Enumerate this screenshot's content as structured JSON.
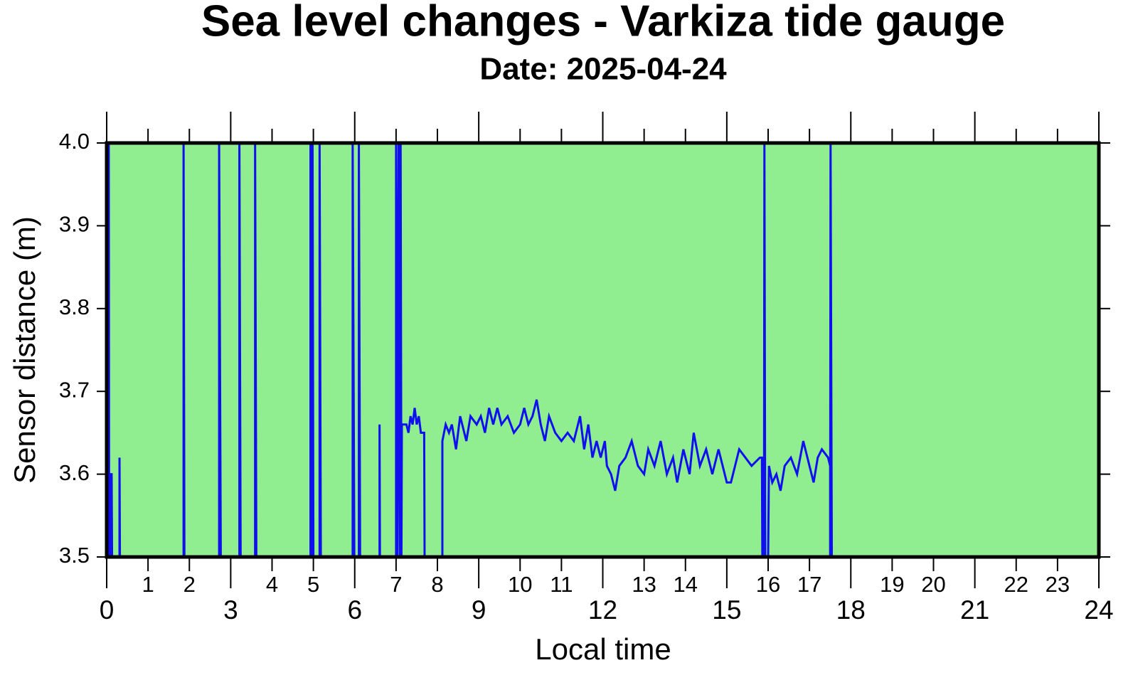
{
  "chart_data": {
    "type": "line",
    "title": "Sea level changes - Varkiza tide gauge",
    "subtitle": "Date: 2025-04-24",
    "x_label": "Local time",
    "y_label": "Sensor distance (m)",
    "xlim": [
      0,
      24
    ],
    "ylim": [
      3.5,
      4.0
    ],
    "xticks": [
      0,
      3,
      6,
      9,
      12,
      15,
      18,
      21,
      24
    ],
    "minor_xticks": [
      1,
      2,
      4,
      5,
      7,
      8,
      10,
      11,
      13,
      14,
      16,
      17,
      19,
      20,
      22,
      23
    ],
    "yticks": [
      3.5,
      3.6,
      3.7,
      3.8,
      3.9,
      {
        "value": 4.0,
        "label": "4.0"
      }
    ],
    "background": "#90ee90",
    "series": [
      {
        "name": "Sensor distance",
        "color": "#1010ee",
        "x": [
          0,
          0.02,
          0.05,
          0.06,
          0.09,
          0.09,
          0.12,
          0.13,
          0.31,
          0.31,
          0.32,
          1.86,
          1.86,
          1.88,
          2.72,
          2.72,
          2.76,
          3.21,
          3.21,
          3.24,
          3.59,
          3.59,
          3.62,
          4.93,
          4.93,
          4.96,
          4.98,
          4.98,
          5.0,
          5.15,
          5.15,
          5.18,
          5.95,
          5.95,
          5.99,
          6.1,
          6.1,
          6.13,
          6.6,
          6.6,
          6.61,
          7.0,
          7.0,
          7.03,
          7.06,
          7.09,
          7.11,
          7.13,
          7.14,
          7.25,
          7.3,
          7.35,
          7.4,
          7.45,
          7.5,
          7.55,
          7.6,
          7.68,
          7.69,
          8.12,
          8.12,
          8.2,
          8.28,
          8.35,
          8.45,
          8.55,
          8.7,
          8.8,
          8.95,
          9.05,
          9.15,
          9.25,
          9.35,
          9.45,
          9.55,
          9.7,
          9.85,
          10.0,
          10.1,
          10.2,
          10.3,
          10.4,
          10.5,
          10.6,
          10.7,
          10.85,
          11.0,
          11.15,
          11.3,
          11.45,
          11.55,
          11.65,
          11.75,
          11.85,
          11.95,
          12.05,
          12.1,
          12.2,
          12.3,
          12.4,
          12.55,
          12.7,
          12.85,
          13.0,
          13.1,
          13.25,
          13.4,
          13.55,
          13.7,
          13.8,
          13.95,
          14.1,
          14.2,
          14.35,
          14.5,
          14.65,
          14.8,
          14.95,
          15.0,
          15.1,
          15.15,
          15.3,
          15.45,
          15.6,
          15.8,
          15.85,
          15.86,
          15.9,
          15.91,
          15.93,
          16.0,
          16.02,
          16.1,
          16.2,
          16.3,
          16.4,
          16.55,
          16.7,
          16.85,
          17.0,
          17.1,
          17.2,
          17.3,
          17.45,
          17.5,
          17.5,
          17.51,
          17.54,
          24
        ],
        "values": [
          3.5,
          4.0,
          4.0,
          3.5,
          3.5,
          3.6,
          3.6,
          3.5,
          3.5,
          3.62,
          3.5,
          3.5,
          4.0,
          3.5,
          3.5,
          4.0,
          3.5,
          3.5,
          4.0,
          3.5,
          3.5,
          4.0,
          3.5,
          3.5,
          4.0,
          3.5,
          3.5,
          4.0,
          3.5,
          3.5,
          4.0,
          3.5,
          3.5,
          4.0,
          3.5,
          3.5,
          4.0,
          3.5,
          3.5,
          3.66,
          3.5,
          3.5,
          4.0,
          3.5,
          4.0,
          3.5,
          4.0,
          3.5,
          3.66,
          3.66,
          3.65,
          3.67,
          3.66,
          3.68,
          3.66,
          3.67,
          3.65,
          3.65,
          3.5,
          3.5,
          3.64,
          3.66,
          3.65,
          3.66,
          3.63,
          3.67,
          3.64,
          3.67,
          3.66,
          3.67,
          3.65,
          3.68,
          3.66,
          3.68,
          3.66,
          3.67,
          3.65,
          3.66,
          3.68,
          3.66,
          3.67,
          3.69,
          3.66,
          3.64,
          3.67,
          3.65,
          3.64,
          3.65,
          3.64,
          3.67,
          3.63,
          3.66,
          3.62,
          3.64,
          3.62,
          3.64,
          3.61,
          3.6,
          3.58,
          3.61,
          3.62,
          3.64,
          3.61,
          3.6,
          3.63,
          3.61,
          3.64,
          3.6,
          3.62,
          3.59,
          3.63,
          3.6,
          3.65,
          3.61,
          3.63,
          3.6,
          3.63,
          3.6,
          3.59,
          3.59,
          3.6,
          3.63,
          3.62,
          3.61,
          3.62,
          3.62,
          3.5,
          3.5,
          4.0,
          3.5,
          3.5,
          3.61,
          3.59,
          3.6,
          3.58,
          3.61,
          3.62,
          3.6,
          3.64,
          3.61,
          3.59,
          3.62,
          3.63,
          3.62,
          3.61,
          3.5,
          4.0,
          3.5,
          3.5
        ]
      }
    ]
  }
}
